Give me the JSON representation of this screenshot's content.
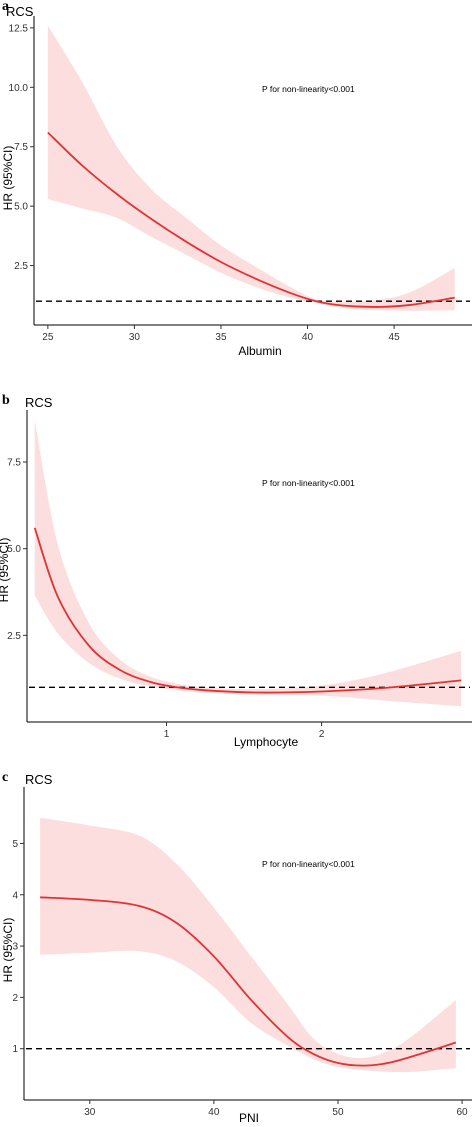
{
  "chart_data": [
    {
      "type": "line",
      "panel_label": "a",
      "title": "RCS",
      "xlabel": "Albumin",
      "ylabel": "HR (95%CI)",
      "annotation": "P for non-linearity<0.001",
      "xlim": [
        24.2,
        49.5
      ],
      "ylim": [
        0,
        13.0
      ],
      "xticks": [
        25,
        30,
        35,
        40,
        45
      ],
      "yticks": [
        2.5,
        5.0,
        7.5,
        10.0,
        12.5
      ],
      "ytick_labels": [
        "2.5",
        "5.0",
        "7.5",
        "10.0",
        "12.5"
      ],
      "reference_line": 1,
      "series": [
        {
          "x": [
            25,
            27,
            29,
            31,
            33,
            35,
            37,
            39,
            40.5,
            42,
            44,
            46,
            48.5
          ],
          "y": [
            8.1,
            6.7,
            5.5,
            4.45,
            3.5,
            2.65,
            1.95,
            1.35,
            1.0,
            0.82,
            0.76,
            0.85,
            1.15
          ],
          "lower": [
            5.3,
            4.9,
            4.5,
            3.7,
            2.95,
            2.2,
            1.6,
            1.15,
            0.93,
            0.72,
            0.62,
            0.6,
            0.62
          ],
          "upper": [
            12.6,
            10.2,
            7.5,
            5.7,
            4.5,
            3.35,
            2.45,
            1.6,
            1.08,
            0.98,
            1.05,
            1.4,
            2.4
          ]
        }
      ]
    },
    {
      "type": "line",
      "panel_label": "b",
      "title": "RCS",
      "xlabel": "Lymphocyte",
      "ylabel": "HR (95%CI)",
      "annotation": "P for non-linearity<0.001",
      "xlim": [
        0.1,
        2.97
      ],
      "ylim": [
        0,
        9.0
      ],
      "xticks": [
        1,
        2
      ],
      "yticks": [
        2.5,
        5.0,
        7.5
      ],
      "ytick_labels": [
        "2.5",
        "5.0",
        "7.5"
      ],
      "reference_line": 1,
      "series": [
        {
          "x": [
            0.15,
            0.3,
            0.5,
            0.7,
            0.9,
            1.1,
            1.3,
            1.6,
            2.0,
            2.4,
            2.9
          ],
          "y": [
            5.6,
            3.6,
            2.2,
            1.5,
            1.15,
            0.98,
            0.9,
            0.85,
            0.88,
            0.98,
            1.2
          ],
          "lower": [
            3.65,
            2.55,
            1.7,
            1.25,
            1.02,
            0.9,
            0.83,
            0.78,
            0.76,
            0.62,
            0.45
          ],
          "upper": [
            8.7,
            5.1,
            2.85,
            1.8,
            1.3,
            1.08,
            0.98,
            0.95,
            1.05,
            1.4,
            2.05
          ]
        }
      ]
    },
    {
      "type": "line",
      "panel_label": "c",
      "title": "RCS",
      "xlabel": "PNI",
      "ylabel": "HR (95%CI)",
      "annotation": "P for non-linearity<0.001",
      "xlim": [
        24.7,
        60.8
      ],
      "ylim": [
        0,
        6.1
      ],
      "xticks": [
        30,
        40,
        50,
        60
      ],
      "yticks": [
        1,
        2,
        3,
        4,
        5
      ],
      "ytick_labels": [
        "1",
        "2",
        "3",
        "4",
        "5"
      ],
      "reference_line": 1,
      "series": [
        {
          "x": [
            26,
            30,
            34,
            37,
            40,
            43,
            46,
            48,
            50,
            52,
            54,
            56,
            59.5
          ],
          "y": [
            3.95,
            3.9,
            3.78,
            3.45,
            2.8,
            1.95,
            1.22,
            0.9,
            0.72,
            0.67,
            0.72,
            0.85,
            1.12
          ],
          "lower": [
            2.83,
            2.87,
            2.9,
            2.7,
            2.2,
            1.5,
            1.05,
            0.8,
            0.64,
            0.58,
            0.55,
            0.55,
            0.62
          ],
          "upper": [
            5.5,
            5.35,
            5.15,
            4.6,
            3.75,
            2.8,
            1.85,
            1.2,
            0.9,
            0.82,
            0.95,
            1.25,
            1.95
          ]
        }
      ]
    }
  ],
  "colors": {
    "line": "#e03434",
    "band": "#fcdede",
    "reference": "#000000"
  }
}
